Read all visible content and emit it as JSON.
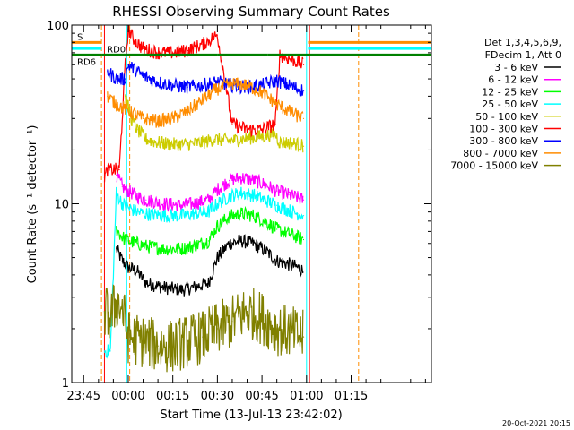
{
  "chart_data": {
    "type": "line",
    "title": "RHESSI Observing Summary Count Rates",
    "xlabel": "Start Time (13-Jul-13 23:42:02)",
    "ylabel": "Count Rate (s⁻¹ detector⁻¹)",
    "yscale": "log",
    "ylim": [
      1,
      100
    ],
    "xlim_minutes": [
      -19,
      102
    ],
    "x_ticks": [
      {
        "label": "23:45",
        "minutes": -15
      },
      {
        "label": "00:00",
        "minutes": 0
      },
      {
        "label": "00:15",
        "minutes": 15
      },
      {
        "label": "00:30",
        "minutes": 30
      },
      {
        "label": "00:45",
        "minutes": 45
      },
      {
        "label": "01:00",
        "minutes": 60
      },
      {
        "label": "01:15",
        "minutes": 75
      }
    ],
    "y_ticks": [
      {
        "label": "1",
        "value": 1
      },
      {
        "label": "10",
        "value": 10
      },
      {
        "label": "100",
        "value": 100
      }
    ],
    "legend": {
      "placement": "right",
      "header": [
        "Det 1,3,4,5,6,9,",
        "FDecim 1, Att 0"
      ]
    },
    "series": [
      {
        "name": "3 - 6 keV",
        "color": "#000000",
        "x": [
          -4,
          -2,
          0,
          3,
          6,
          12,
          18,
          22,
          27,
          30,
          34,
          38,
          42,
          46,
          50,
          54,
          57,
          59
        ],
        "y": [
          5.6,
          4.8,
          4.4,
          4.2,
          3.6,
          3.4,
          3.3,
          3.4,
          3.6,
          5.0,
          6.0,
          6.2,
          6.0,
          5.5,
          4.8,
          4.6,
          4.4,
          4.2
        ]
      },
      {
        "name": "6 - 12 keV",
        "color": "#ff00ff",
        "x": [
          -4,
          -2,
          0,
          3,
          6,
          12,
          18,
          22,
          27,
          30,
          34,
          38,
          42,
          46,
          50,
          54,
          57,
          59
        ],
        "y": [
          14.5,
          12.5,
          11.8,
          11.0,
          10.5,
          10.0,
          9.8,
          10.0,
          10.5,
          12.0,
          13.5,
          14.0,
          13.6,
          12.8,
          11.8,
          11.2,
          10.8,
          10.5
        ]
      },
      {
        "name": "12 - 25 keV",
        "color": "#00ff00",
        "x": [
          -4,
          -2,
          0,
          3,
          6,
          12,
          18,
          22,
          27,
          30,
          34,
          38,
          42,
          46,
          50,
          54,
          57,
          59
        ],
        "y": [
          7.2,
          6.5,
          6.2,
          6.0,
          5.8,
          5.6,
          5.6,
          5.8,
          6.2,
          7.5,
          8.5,
          8.8,
          8.6,
          8.0,
          7.2,
          6.8,
          6.5,
          6.3
        ]
      },
      {
        "name": "25 - 50 keV",
        "color": "#00ffff",
        "x": [
          -8,
          -6,
          -4,
          -2,
          0,
          3,
          6,
          12,
          18,
          22,
          27,
          30,
          34,
          38,
          42,
          46,
          50,
          54,
          57,
          59
        ],
        "y": [
          1.5,
          1.5,
          11.5,
          10.0,
          9.5,
          9.0,
          8.8,
          8.6,
          8.6,
          8.8,
          9.0,
          10.0,
          11.0,
          11.5,
          11.2,
          10.5,
          9.8,
          9.2,
          8.8,
          8.6
        ]
      },
      {
        "name": "50 - 100 keV",
        "color": "#cccc00",
        "x": [
          -1,
          1,
          3,
          6,
          10,
          15,
          20,
          25,
          29,
          34,
          38,
          42,
          46,
          49.5,
          51,
          54,
          57,
          59
        ],
        "y": [
          40,
          30,
          26,
          23,
          22,
          21.5,
          21.5,
          22,
          23,
          22.5,
          23,
          23.5,
          24,
          24.5,
          22,
          22,
          21.5,
          21
        ]
      },
      {
        "name": "100 - 300 keV",
        "color": "#ff0000",
        "x": [
          -8,
          -7,
          -3,
          -1,
          0,
          2,
          5,
          10,
          15,
          20,
          25,
          30,
          35,
          40,
          45,
          49.5,
          51,
          54,
          57,
          59
        ],
        "y": [
          14,
          15.5,
          15.5,
          60,
          95,
          82,
          74,
          70,
          70,
          72,
          78,
          88,
          28,
          26,
          26,
          28,
          68,
          65,
          62,
          60
        ]
      },
      {
        "name": "300 - 800 keV",
        "color": "#0000ff",
        "x": [
          -7,
          -4,
          -1,
          0,
          5,
          10,
          15,
          20,
          25,
          30,
          35,
          40,
          45,
          50,
          54,
          57,
          59
        ],
        "y": [
          55,
          50,
          50,
          60,
          52,
          48,
          46,
          45,
          46,
          48,
          46,
          45,
          46,
          49,
          46,
          44,
          43
        ]
      },
      {
        "name": "800 - 7000 keV",
        "color": "#ff8c00",
        "x": [
          -7,
          -4,
          -1,
          0,
          5,
          10,
          15,
          20,
          25,
          30,
          35,
          40,
          45,
          50,
          54,
          57,
          59
        ],
        "y": [
          40,
          36,
          34,
          33,
          30,
          29,
          30,
          33,
          38,
          44,
          47,
          46,
          42,
          36,
          33,
          31,
          30
        ]
      },
      {
        "name": "7000 - 15000 keV",
        "color": "#808000",
        "x": [
          -8,
          -6,
          -4,
          -2,
          0,
          5,
          10,
          15,
          20,
          25,
          30,
          35,
          40,
          45,
          50,
          55,
          59
        ],
        "y": [
          2.5,
          2.3,
          2.8,
          2.6,
          1.8,
          1.7,
          1.6,
          1.6,
          1.7,
          1.8,
          2.0,
          2.2,
          2.5,
          2.3,
          2.0,
          1.9,
          1.8
        ]
      }
    ],
    "flags": [
      {
        "label": "S",
        "color": "#ff8c00",
        "value": 80,
        "segments": [
          [
            -19,
            -9
          ],
          [
            60.5,
            102
          ]
        ]
      },
      {
        "label": "",
        "color": "#00ffff",
        "value": 74,
        "segments": [
          [
            -19,
            -9
          ],
          [
            60.5,
            102
          ]
        ]
      },
      {
        "label": "RD0",
        "color": "#008000",
        "value": 68,
        "segments": [
          [
            -9,
            30
          ],
          [
            30,
            47
          ],
          [
            47,
            102
          ]
        ]
      },
      {
        "label": "RD6",
        "color": "#008000",
        "value": 68,
        "segments": [
          [
            -19,
            -9
          ]
        ]
      }
    ],
    "vertical_markers": [
      {
        "minutes": -9,
        "color": "#ff8c00",
        "style": "dashed"
      },
      {
        "minutes": -8,
        "color": "#ff0000",
        "style": "solid"
      },
      {
        "minutes": -0.5,
        "color": "#00ffff",
        "style": "solid"
      },
      {
        "minutes": 0.5,
        "color": "#ff8c00",
        "style": "dashed"
      },
      {
        "minutes": 60,
        "color": "#00ffff",
        "style": "solid"
      },
      {
        "minutes": 61,
        "color": "#ff0000",
        "style": "solid"
      },
      {
        "minutes": 77.5,
        "color": "#ff8c00",
        "style": "dashed"
      }
    ]
  },
  "footer": {
    "timestamp": "20-Oct-2021 20:15"
  }
}
